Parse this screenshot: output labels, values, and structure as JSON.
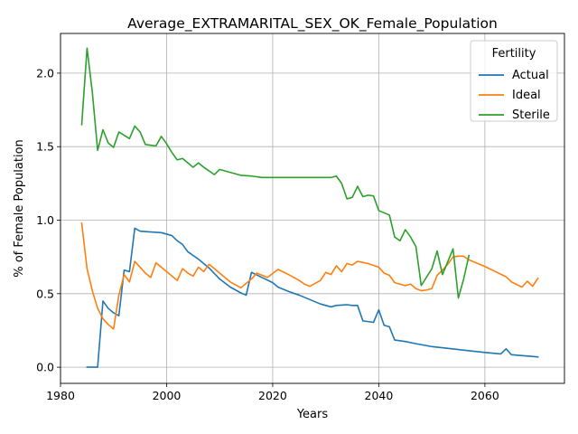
{
  "chart_data": {
    "type": "line",
    "title": "Average_EXTRAMARITAL_SEX_OK_Female_Population",
    "xlabel": "Years",
    "ylabel": "% of Female Population",
    "xlim": [
      1980,
      2075
    ],
    "ylim": [
      -0.11,
      2.27
    ],
    "xticks": [
      1980,
      2000,
      2020,
      2040,
      2060
    ],
    "yticks": [
      0.0,
      0.5,
      1.0,
      1.5,
      2.0
    ],
    "ytick_labels": [
      "0.0",
      "0.5",
      "1.0",
      "1.5",
      "2.0"
    ],
    "grid": true,
    "legend": {
      "title": "Fertility",
      "placement": "top-right"
    },
    "series": [
      {
        "name": "Actual",
        "color": "#1f77b4",
        "x": [
          1985,
          1987,
          1988,
          1989,
          1990,
          1991,
          1992,
          1993,
          1994,
          1995,
          1997,
          1999,
          2001,
          2002,
          2003,
          2004,
          2006,
          2008,
          2010,
          2012,
          2014,
          2015,
          2016,
          2018,
          2020,
          2021,
          2023,
          2025,
          2027,
          2029,
          2031,
          2032,
          2034,
          2035,
          2036,
          2037,
          2039,
          2040,
          2041,
          2042,
          2043,
          2045,
          2047,
          2050,
          2055,
          2060,
          2063,
          2064,
          2065,
          2070
        ],
        "y": [
          0.0,
          0.0,
          0.45,
          0.4,
          0.37,
          0.35,
          0.66,
          0.65,
          0.945,
          0.925,
          0.92,
          0.915,
          0.895,
          0.86,
          0.835,
          0.785,
          0.735,
          0.675,
          0.6,
          0.545,
          0.505,
          0.49,
          0.645,
          0.61,
          0.575,
          0.545,
          0.515,
          0.49,
          0.46,
          0.43,
          0.41,
          0.42,
          0.425,
          0.42,
          0.42,
          0.315,
          0.305,
          0.39,
          0.285,
          0.275,
          0.185,
          0.175,
          0.16,
          0.14,
          0.12,
          0.1,
          0.09,
          0.125,
          0.085,
          0.07
        ]
      },
      {
        "name": "Ideal",
        "color": "#ff7f0e",
        "x": [
          1984,
          1985,
          1986,
          1987,
          1988,
          1989,
          1990,
          1991,
          1992,
          1993,
          1994,
          1995,
          1996,
          1997,
          1998,
          1999,
          2000,
          2001,
          2002,
          2003,
          2004,
          2005,
          2006,
          2007,
          2008,
          2009,
          2010,
          2012,
          2014,
          2016,
          2017,
          2019,
          2021,
          2023,
          2025,
          2026,
          2027,
          2029,
          2030,
          2031,
          2032,
          2033,
          2034,
          2035,
          2036,
          2038,
          2040,
          2041,
          2042,
          2043,
          2045,
          2046,
          2047,
          2048,
          2049,
          2050,
          2051,
          2052,
          2053,
          2054,
          2055,
          2056,
          2057,
          2058,
          2060,
          2062,
          2064,
          2065,
          2067,
          2068,
          2069,
          2070
        ],
        "y": [
          0.98,
          0.67,
          0.52,
          0.4,
          0.33,
          0.29,
          0.26,
          0.49,
          0.63,
          0.58,
          0.72,
          0.68,
          0.64,
          0.61,
          0.71,
          0.68,
          0.65,
          0.62,
          0.59,
          0.67,
          0.64,
          0.62,
          0.68,
          0.65,
          0.7,
          0.67,
          0.64,
          0.58,
          0.54,
          0.6,
          0.64,
          0.61,
          0.665,
          0.63,
          0.59,
          0.565,
          0.55,
          0.59,
          0.645,
          0.63,
          0.69,
          0.65,
          0.705,
          0.695,
          0.72,
          0.705,
          0.68,
          0.64,
          0.625,
          0.575,
          0.555,
          0.565,
          0.535,
          0.52,
          0.525,
          0.535,
          0.625,
          0.66,
          0.7,
          0.75,
          0.755,
          0.755,
          0.73,
          0.715,
          0.685,
          0.65,
          0.615,
          0.58,
          0.545,
          0.585,
          0.55,
          0.605
        ]
      },
      {
        "name": "Sterile",
        "color": "#2ca02c",
        "x": [
          1984,
          1985,
          1986,
          1987,
          1988,
          1989,
          1990,
          1991,
          1993,
          1994,
          1995,
          1996,
          1998,
          1999,
          2000,
          2001,
          2002,
          2003,
          2004,
          2005,
          2006,
          2007,
          2009,
          2010,
          2012,
          2014,
          2016,
          2018,
          2020,
          2022,
          2024,
          2026,
          2028,
          2030,
          2031,
          2032,
          2033,
          2034,
          2035,
          2036,
          2037,
          2038,
          2039,
          2040,
          2042,
          2043,
          2044,
          2045,
          2046,
          2047,
          2048,
          2050,
          2051,
          2052,
          2054,
          2055,
          2056,
          2057
        ],
        "y": [
          1.65,
          2.17,
          1.87,
          1.475,
          1.615,
          1.525,
          1.495,
          1.6,
          1.555,
          1.64,
          1.6,
          1.515,
          1.505,
          1.57,
          1.52,
          1.46,
          1.41,
          1.42,
          1.39,
          1.36,
          1.39,
          1.36,
          1.31,
          1.345,
          1.325,
          1.305,
          1.3,
          1.29,
          1.29,
          1.29,
          1.29,
          1.29,
          1.29,
          1.29,
          1.29,
          1.3,
          1.25,
          1.145,
          1.155,
          1.23,
          1.16,
          1.17,
          1.165,
          1.065,
          1.035,
          0.885,
          0.86,
          0.935,
          0.885,
          0.82,
          0.555,
          0.67,
          0.79,
          0.63,
          0.805,
          0.47,
          0.6,
          0.76
        ]
      }
    ]
  }
}
